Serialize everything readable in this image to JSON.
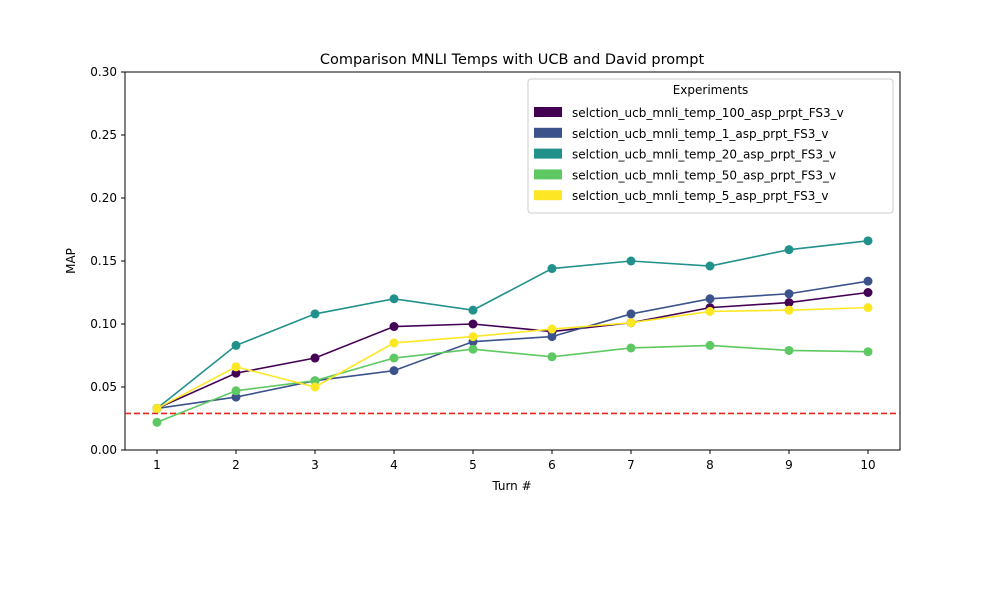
{
  "chart_data": {
    "type": "line",
    "title": "Comparison MNLI Temps with UCB and David prompt",
    "xlabel": "Turn #",
    "ylabel": "MAP",
    "x": [
      1,
      2,
      3,
      4,
      5,
      6,
      7,
      8,
      9,
      10
    ],
    "xticks": [
      "1",
      "2",
      "3",
      "4",
      "5",
      "6",
      "7",
      "8",
      "9",
      "10"
    ],
    "yticks": [
      "0.00",
      "0.05",
      "0.10",
      "0.15",
      "0.20",
      "0.25",
      "0.30"
    ],
    "ylim": [
      0,
      0.3
    ],
    "grid": false,
    "legend": {
      "title": "Experiments",
      "placement": "top-right"
    },
    "baseline": {
      "value": 0.029,
      "color": "#e8261c",
      "style": "dashed"
    },
    "series": [
      {
        "name": "selction_ucb_mnli_temp_100_asp_prpt_FS3_v",
        "color": "#440154",
        "values": [
          0.033,
          0.061,
          0.073,
          0.098,
          0.1,
          0.094,
          0.101,
          0.113,
          0.117,
          0.125
        ]
      },
      {
        "name": "selction_ucb_mnli_temp_1_asp_prpt_FS3_v",
        "color": "#3b528b",
        "values": [
          0.033,
          0.042,
          0.055,
          0.063,
          0.086,
          0.09,
          0.108,
          0.12,
          0.124,
          0.134
        ]
      },
      {
        "name": "selction_ucb_mnli_temp_20_asp_prpt_FS3_v",
        "color": "#21918c",
        "values": [
          0.033,
          0.083,
          0.108,
          0.12,
          0.111,
          0.144,
          0.15,
          0.146,
          0.159,
          0.166
        ]
      },
      {
        "name": "selction_ucb_mnli_temp_50_asp_prpt_FS3_v",
        "color": "#5ec962",
        "values": [
          0.022,
          0.047,
          0.055,
          0.073,
          0.08,
          0.074,
          0.081,
          0.083,
          0.079,
          0.078
        ]
      },
      {
        "name": "selction_ucb_mnli_temp_5_asp_prpt_FS3_v",
        "color": "#fde725",
        "values": [
          0.033,
          0.066,
          0.05,
          0.085,
          0.09,
          0.096,
          0.101,
          0.11,
          0.111,
          0.113
        ]
      }
    ]
  }
}
